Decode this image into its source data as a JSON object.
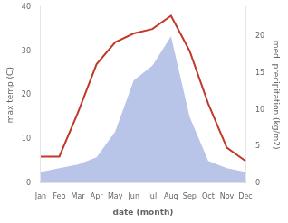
{
  "chart_data": {
    "type": "line",
    "xlabel": "date (month)",
    "ylabel": "max temp (C)",
    "y2label": "med. precipitation (kg/m2)",
    "categories": [
      "Jan",
      "Feb",
      "Mar",
      "Apr",
      "May",
      "Jun",
      "Jul",
      "Aug",
      "Sep",
      "Oct",
      "Nov",
      "Dec"
    ],
    "series": [
      {
        "type": "area",
        "axis": "y2",
        "color": "#b8c4e8",
        "values": [
          1.5,
          2,
          2.5,
          3.5,
          7,
          14,
          16,
          20,
          9,
          3,
          2,
          1.5
        ]
      },
      {
        "type": "line",
        "color": "#c0392b",
        "values": [
          6,
          6,
          16,
          27,
          32,
          34,
          35,
          38,
          30,
          18,
          8,
          5
        ]
      }
    ],
    "ylim": [
      0,
      40
    ],
    "yticks": [
      0,
      10,
      20,
      30,
      40
    ],
    "y2lim": [
      0,
      24
    ],
    "y2ticks": [
      0,
      5,
      10,
      15,
      20
    ],
    "grid": false
  }
}
